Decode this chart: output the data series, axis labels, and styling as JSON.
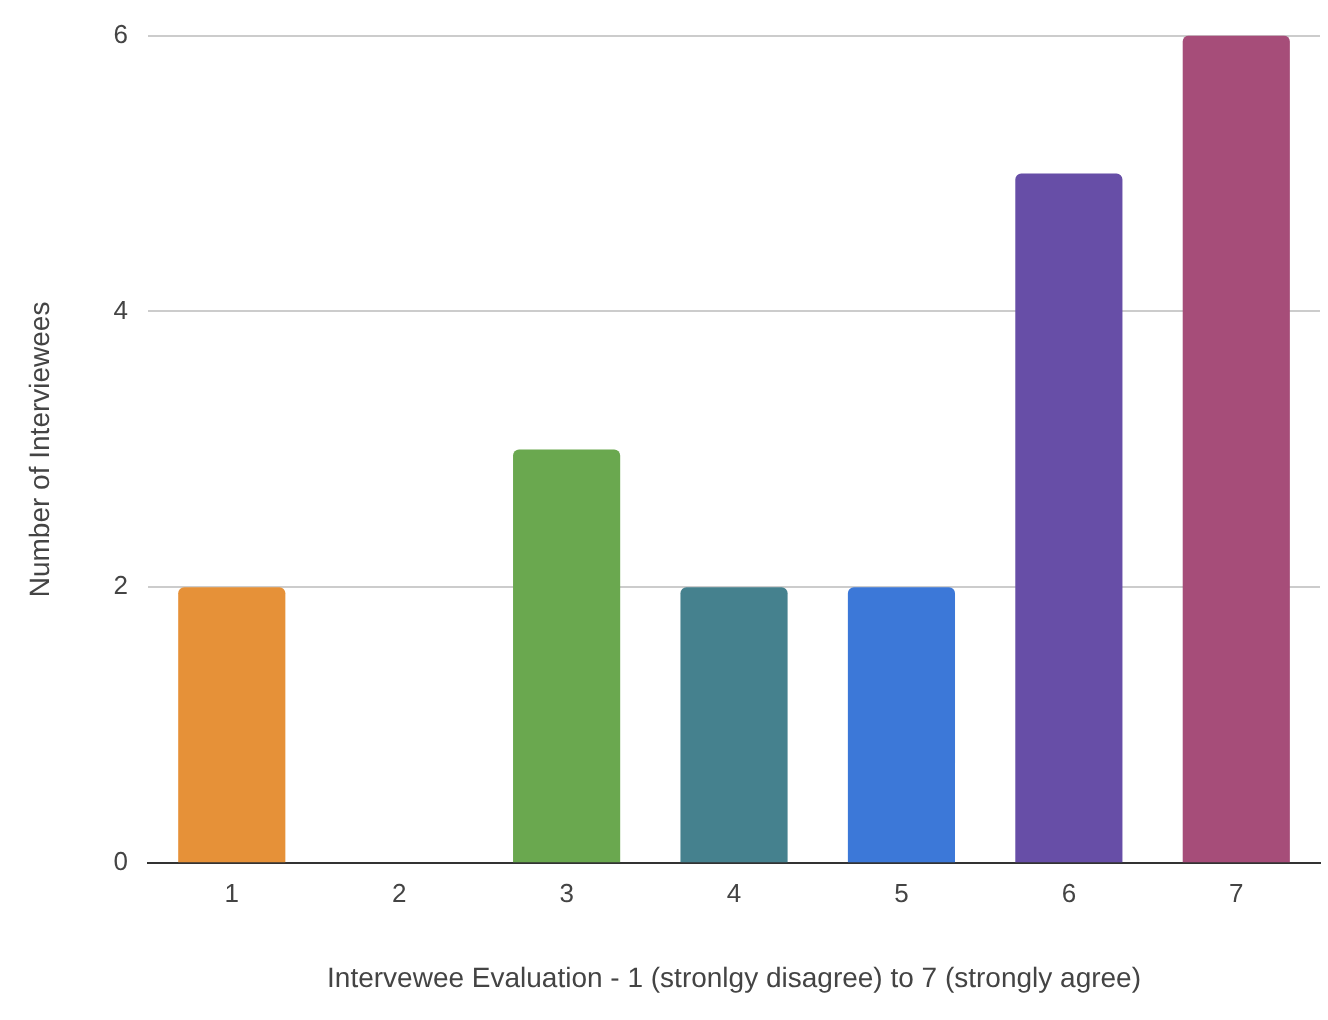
{
  "chart_data": {
    "type": "bar",
    "xlabel": "Intervewee Evaluation - 1 (stronlgy disagree) to 7 (strongly agree)",
    "ylabel": "Number of Interviewees",
    "categories": [
      "1",
      "2",
      "3",
      "4",
      "5",
      "6",
      "7"
    ],
    "values": [
      2,
      0,
      3,
      2,
      2,
      5,
      6
    ],
    "colors": [
      "#e69138",
      "#cc0000",
      "#6aa84f",
      "#45818e",
      "#3c78d8",
      "#674ea7",
      "#a64d79"
    ],
    "ylim": [
      0,
      6
    ],
    "yticks": [
      0,
      2,
      4,
      6
    ],
    "grid": "y",
    "legend": false
  }
}
